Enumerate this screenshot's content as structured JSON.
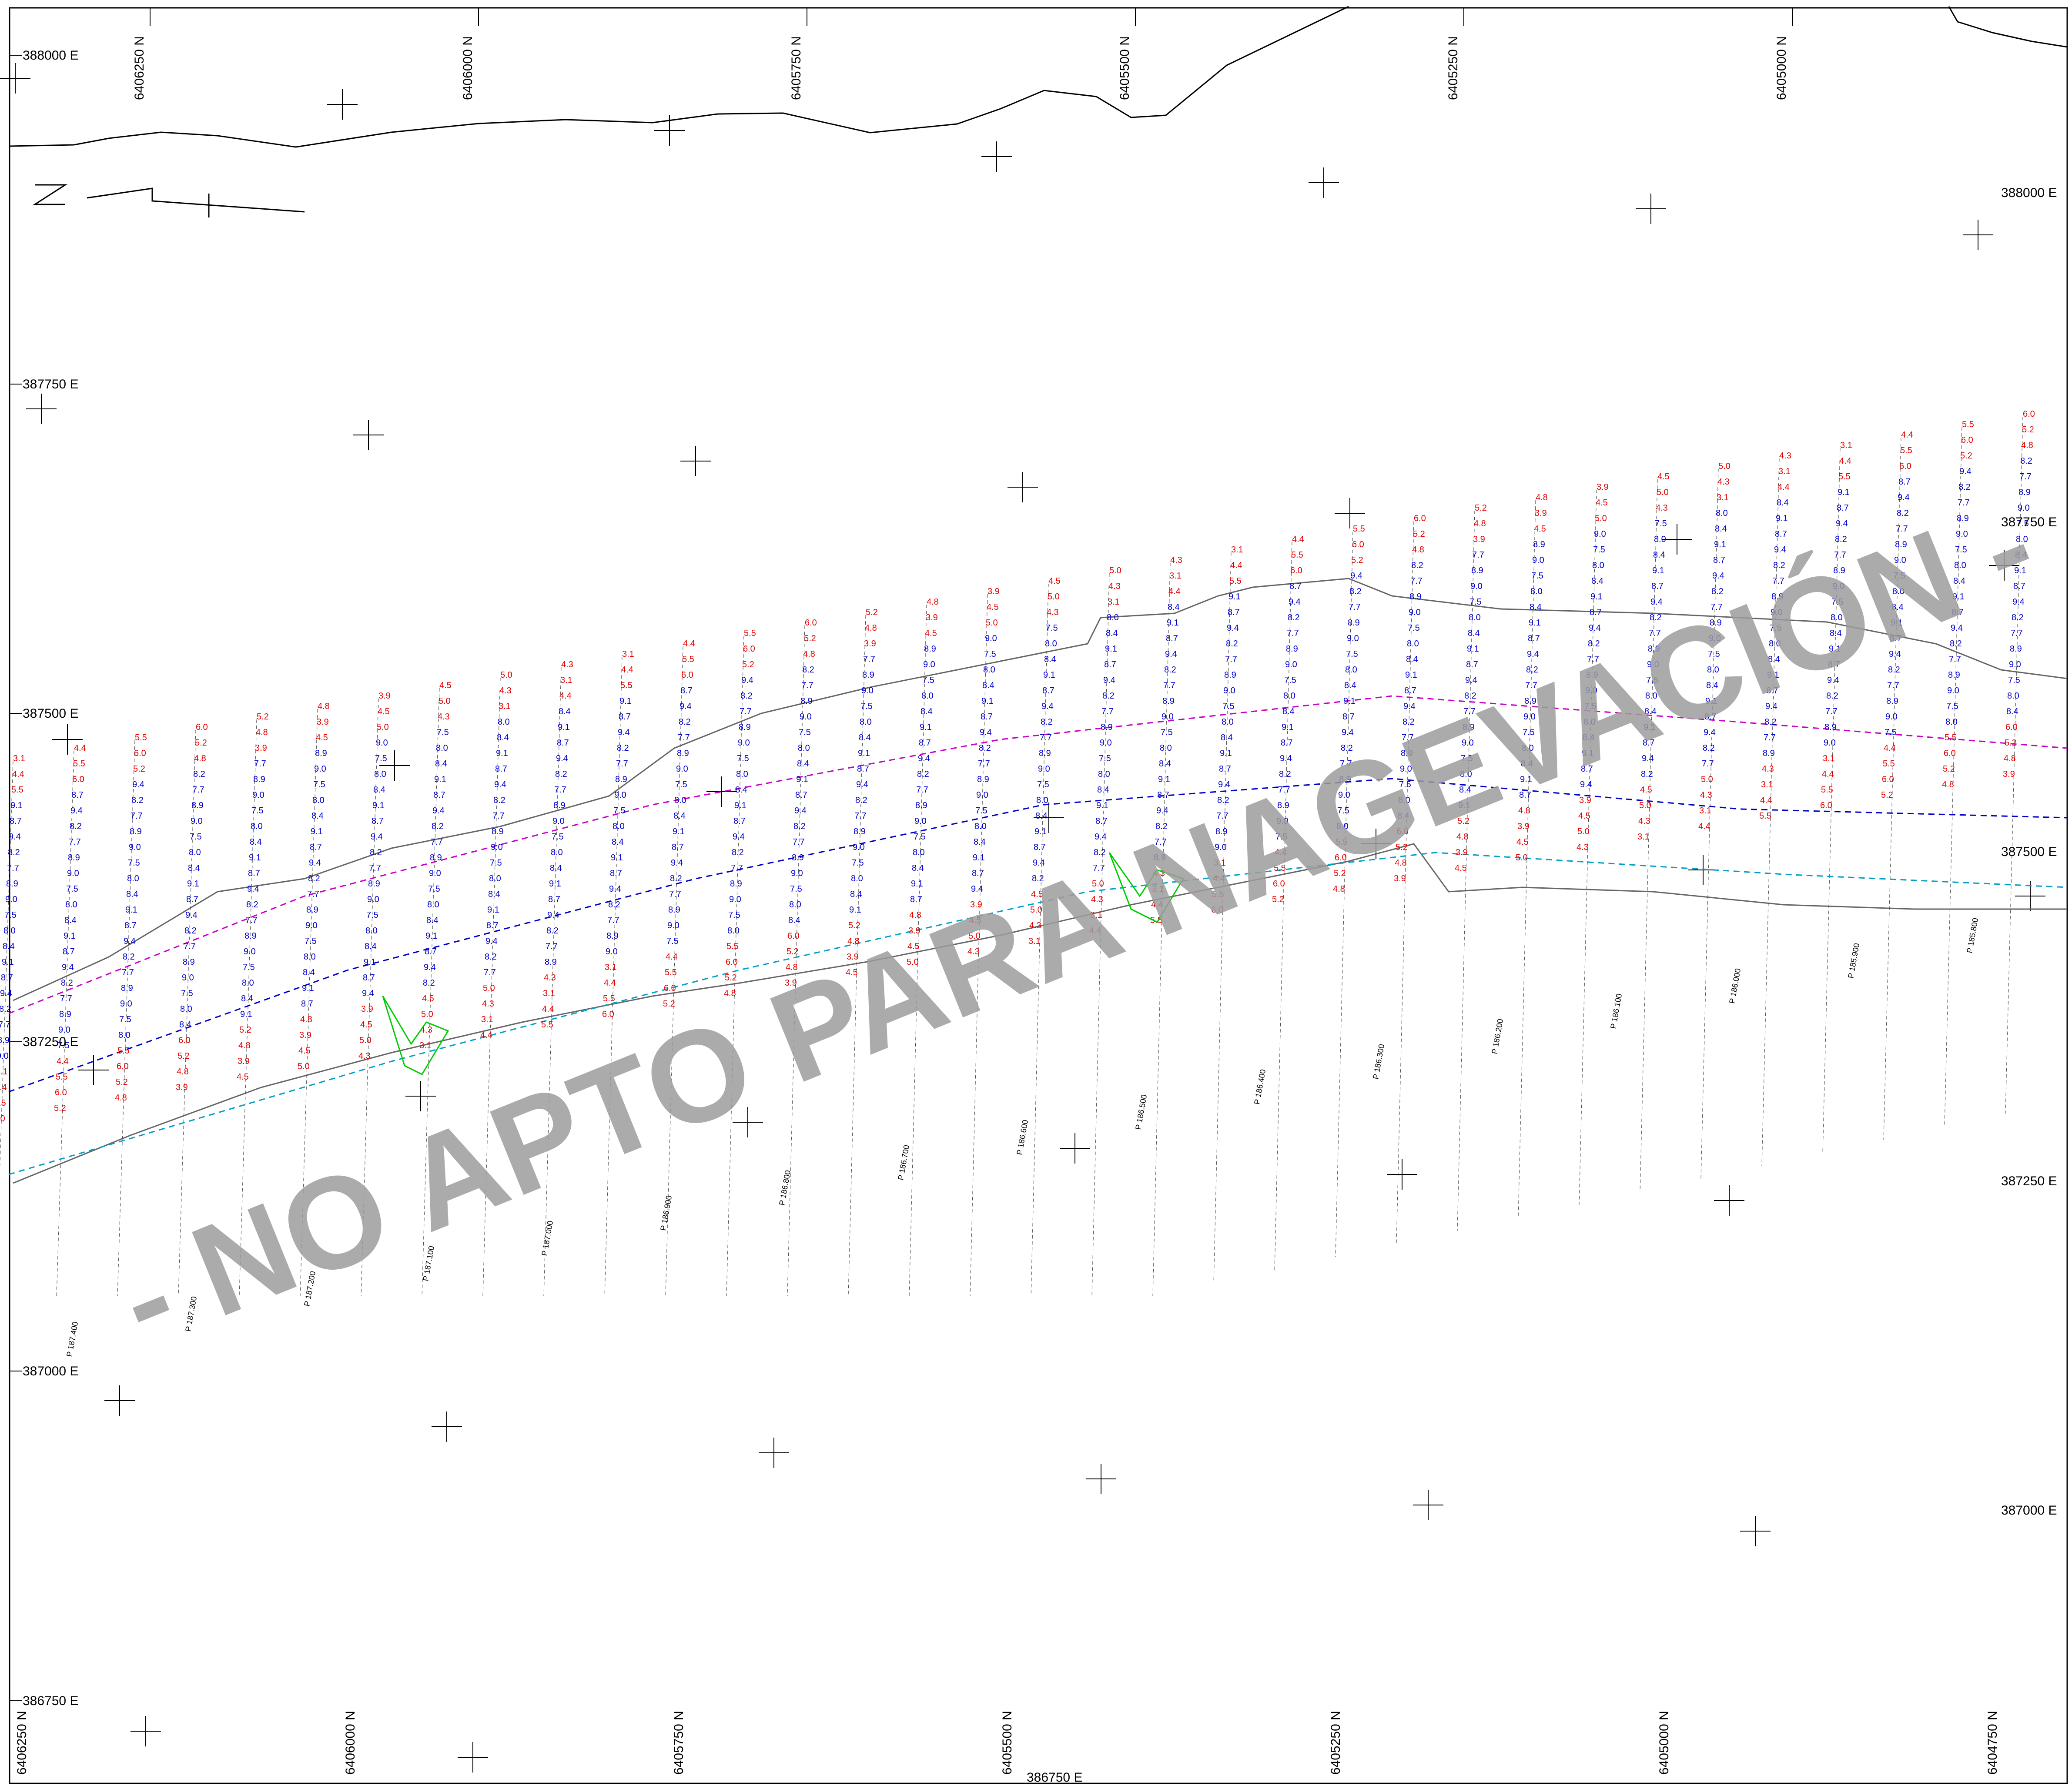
{
  "map": {
    "watermark": "- NO APTO PARA NAGEVACIÓN -",
    "colors": {
      "shallow_sounding": "#e00000",
      "deep_sounding": "#0000c8",
      "coastline": "#000000",
      "contour": "#666666",
      "structure": "#00cc00",
      "watermark": "#9c9c9c"
    },
    "grid_labels": {
      "northing_top": [
        "6406250 N",
        "6406000 N",
        "6405750 N",
        "6405500 N",
        "6405250 N",
        "6405000 N"
      ],
      "northing_bottom": [
        "6406250 N",
        "6406000 N",
        "6405750 N",
        "6405500 N",
        "6405250 N",
        "6405000 N",
        "6404750 N"
      ],
      "easting_left": [
        "388000 E",
        "387750 E",
        "387500 E",
        "387250 E",
        "387000 E",
        "386750 E"
      ],
      "easting_right": [
        "388000 E",
        "387750 E",
        "387500 E",
        "387250 E",
        "387000 E"
      ],
      "easting_bottom": "386750 E"
    },
    "profiles": [
      "P 187.400",
      "P 187.300",
      "P 187.200",
      "P 187.100",
      "P 187.000",
      "P 186.900",
      "P 186.800",
      "P 186.700",
      "P 186.600",
      "P 186.500",
      "P 186.400",
      "P 186.300",
      "P 186.200",
      "P 186.100",
      "P 186.000",
      "P 185.900",
      "P 185.800"
    ],
    "sounding_samples": {
      "red": [
        "3.1",
        "4.4",
        "5.5",
        "6.0",
        "5.2",
        "4.8",
        "3.9",
        "4.5",
        "5.0",
        "4.3"
      ],
      "blue": [
        "7.5",
        "8.0",
        "8.4",
        "9.1",
        "8.7",
        "9.4",
        "8.2",
        "7.7",
        "8.9",
        "9.0"
      ]
    }
  }
}
